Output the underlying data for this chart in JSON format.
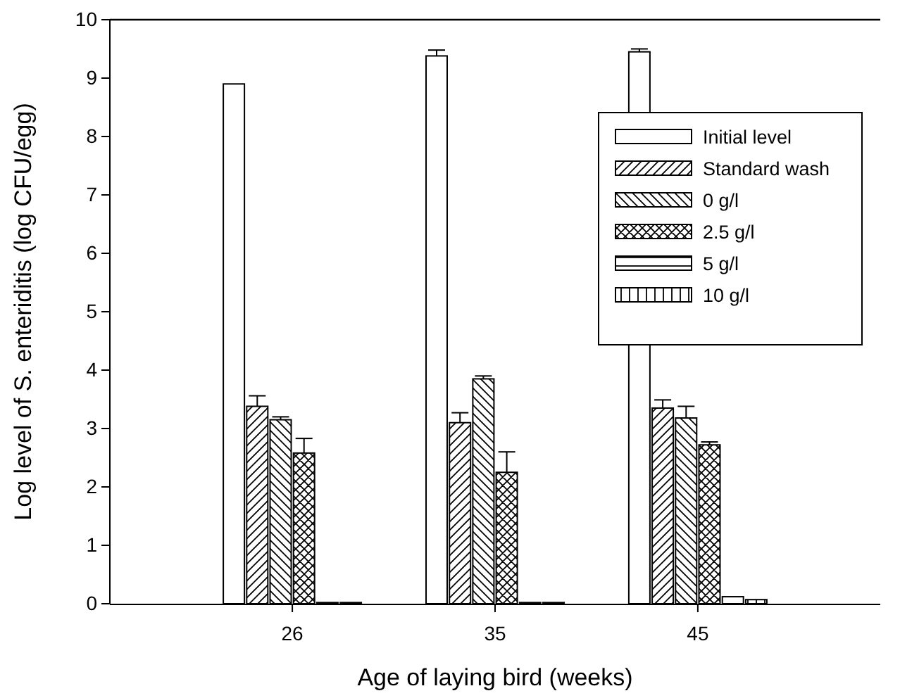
{
  "chart_data": {
    "type": "bar",
    "xlabel": "Age of laying bird (weeks)",
    "ylabel": "Log level of S. enteriditis (log CFU/egg)",
    "categories": [
      "26",
      "35",
      "45"
    ],
    "series": [
      {
        "name": "Initial level",
        "color": "#000000",
        "values": [
          8.9,
          9.38,
          9.45
        ],
        "errors": [
          null,
          0.1,
          0.05
        ]
      },
      {
        "name": "Standard wash",
        "color": "#000000",
        "values": [
          3.38,
          3.1,
          3.35
        ],
        "errors": [
          0.18,
          0.17,
          0.14
        ]
      },
      {
        "name": "0 g/l",
        "color": "#000000",
        "values": [
          3.15,
          3.85,
          3.18
        ],
        "errors": [
          0.05,
          0.05,
          0.2
        ]
      },
      {
        "name": "2.5 g/l",
        "color": "#000000",
        "values": [
          2.58,
          2.25,
          2.72
        ],
        "errors": [
          0.25,
          0.35,
          0.05
        ]
      },
      {
        "name": "5 g/l",
        "color": "#000000",
        "values": [
          0.02,
          0.02,
          0.12
        ],
        "errors": [
          null,
          null,
          null
        ]
      },
      {
        "name": "10 g/l",
        "color": "#000000",
        "values": [
          0.02,
          0.02,
          0.07
        ],
        "errors": [
          null,
          null,
          null
        ]
      }
    ],
    "ylim": [
      0,
      10
    ],
    "yticks": [
      0,
      1,
      2,
      3,
      4,
      5,
      6,
      7,
      8,
      9,
      10
    ],
    "legend": "top right",
    "grid": false
  }
}
